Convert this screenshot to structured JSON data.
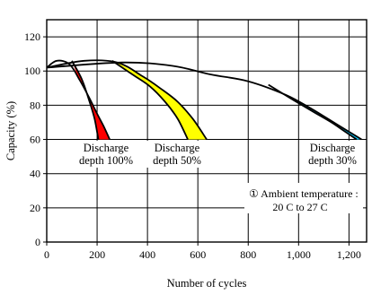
{
  "chart_data": {
    "type": "line",
    "xlabel": "Number of cycles",
    "ylabel": "Capacity (%)",
    "xlim": [
      0,
      1270
    ],
    "ylim": [
      0,
      130
    ],
    "x_ticks": [
      0,
      200,
      400,
      600,
      800,
      1000,
      1200
    ],
    "x_tick_labels": [
      "0",
      "200",
      "400",
      "600",
      "800",
      "1,000",
      "1,200"
    ],
    "y_ticks": [
      0,
      20,
      40,
      60,
      80,
      100,
      120
    ],
    "y_tick_labels": [
      "0",
      "20",
      "40",
      "60",
      "80",
      "100",
      "120"
    ],
    "grid": true,
    "series": [
      {
        "name": "Discharge depth 100%",
        "color": "#ff0000",
        "upper": [
          [
            0,
            102
          ],
          [
            40,
            106
          ],
          [
            90,
            104
          ],
          [
            130,
            95
          ],
          [
            170,
            84
          ],
          [
            200,
            75
          ],
          [
            225,
            68
          ],
          [
            250,
            60
          ]
        ],
        "lower": [
          [
            100,
            106
          ],
          [
            140,
            95
          ],
          [
            170,
            82
          ],
          [
            190,
            72
          ],
          [
            205,
            60
          ]
        ],
        "label_lines": [
          "Discharge",
          "depth 100%"
        ]
      },
      {
        "name": "Discharge depth 50%",
        "color": "#ffff00",
        "upper": [
          [
            0,
            102
          ],
          [
            150,
            106
          ],
          [
            280,
            105
          ],
          [
            380,
            97
          ],
          [
            450,
            90
          ],
          [
            520,
            82
          ],
          [
            580,
            72
          ],
          [
            635,
            60
          ]
        ],
        "lower": [
          [
            260,
            106
          ],
          [
            340,
            98
          ],
          [
            410,
            91
          ],
          [
            470,
            82
          ],
          [
            520,
            72
          ],
          [
            560,
            60
          ]
        ],
        "label_lines": [
          "Discharge",
          "depth 50%"
        ]
      },
      {
        "name": "Discharge depth 30%",
        "color": "#00ccff",
        "upper": [
          [
            0,
            102
          ],
          [
            300,
            105
          ],
          [
            500,
            103
          ],
          [
            650,
            98
          ],
          [
            800,
            94
          ],
          [
            950,
            86
          ],
          [
            1050,
            78
          ],
          [
            1150,
            69
          ],
          [
            1250,
            60
          ]
        ],
        "lower": [
          [
            880,
            92
          ],
          [
            980,
            83
          ],
          [
            1060,
            76
          ],
          [
            1130,
            70
          ],
          [
            1180,
            65
          ],
          [
            1230,
            60
          ]
        ],
        "label_lines": [
          "Discharge",
          "depth 30%"
        ]
      }
    ],
    "annotation_lines": [
      "① Ambient temperature :",
      "20 C to 27 C"
    ]
  }
}
